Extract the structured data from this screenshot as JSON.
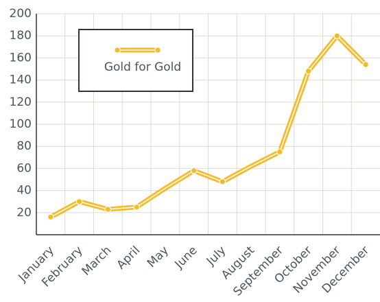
{
  "chart_data": {
    "type": "line",
    "categories": [
      "January",
      "February",
      "March",
      "April",
      "May",
      "June",
      "July",
      "August",
      "September",
      "October",
      "November",
      "December"
    ],
    "series": [
      {
        "name": "Gold for Gold",
        "color": "#f7b924",
        "values": [
          16,
          30,
          23,
          25,
          42,
          58,
          48,
          62,
          75,
          148,
          180,
          154
        ],
        "markers": [
          true,
          true,
          true,
          true,
          false,
          true,
          true,
          false,
          true,
          true,
          true,
          true
        ]
      }
    ],
    "ylim": [
      0,
      200
    ],
    "yticks": [
      20,
      40,
      60,
      80,
      100,
      120,
      140,
      160,
      180,
      200
    ],
    "grid": true,
    "legend": "upper left"
  }
}
